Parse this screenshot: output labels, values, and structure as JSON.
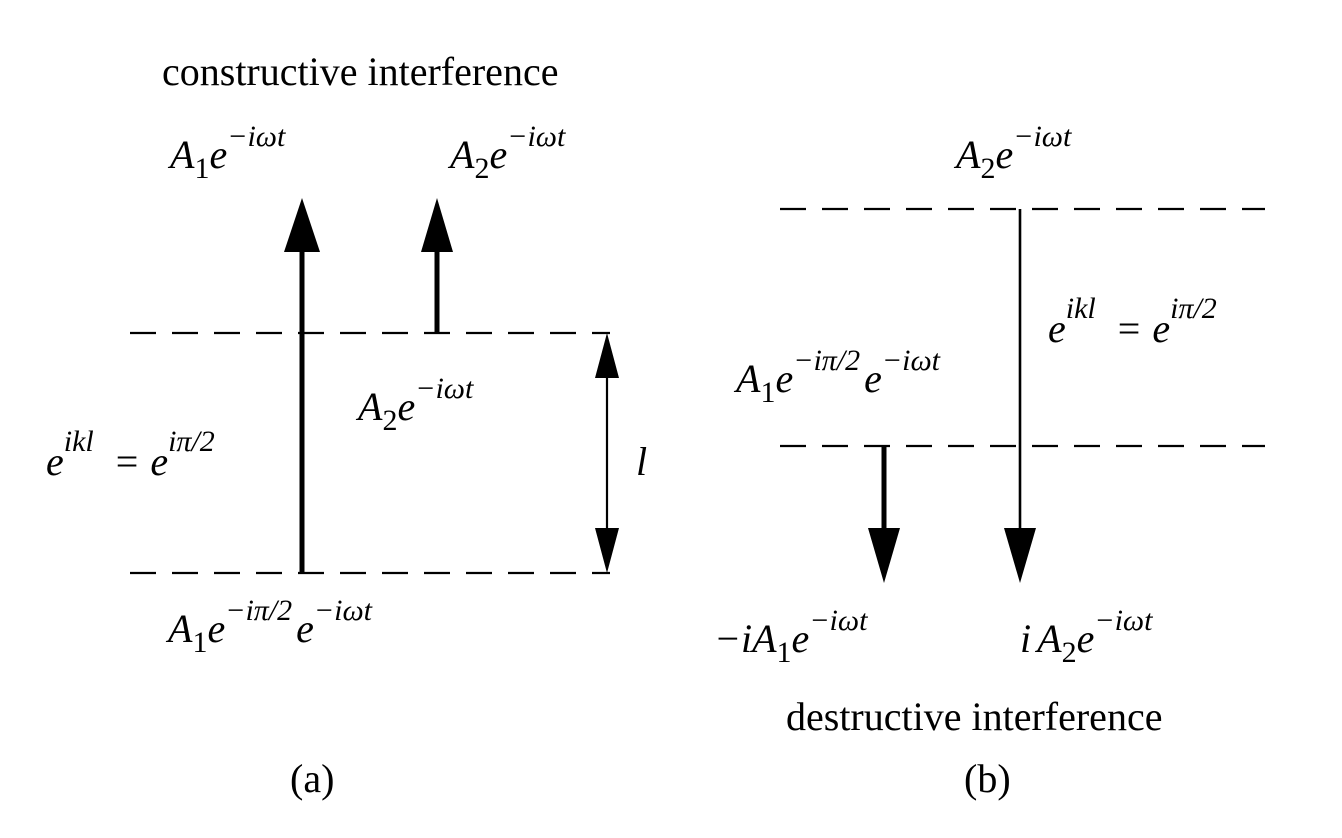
{
  "panel_a": {
    "caption": "(a)",
    "title": "constructive interference",
    "wave1_top": {
      "amp": "A",
      "amp_sub": "1",
      "base": "e",
      "exp": "−iωt"
    },
    "wave2_top": {
      "amp": "A",
      "amp_sub": "2",
      "base": "e",
      "exp": "−iωt"
    },
    "wave2_mid": {
      "amp": "A",
      "amp_sub": "2",
      "base": "e",
      "exp": "−iωt"
    },
    "phase_relation": {
      "lhs_base": "e",
      "lhs_exp": "ikl",
      "eq": "=",
      "rhs_base": "e",
      "rhs_exp": "iπ/2"
    },
    "length_label": "l",
    "wave1_bottom": {
      "amp": "A",
      "amp_sub": "1",
      "base1": "e",
      "exp1": "−iπ/2",
      "base2": "e",
      "exp2": "−iωt"
    }
  },
  "panel_b": {
    "caption": "(b)",
    "title": "destructive interference",
    "wave2_top": {
      "amp": "A",
      "amp_sub": "2",
      "base": "e",
      "exp": "−iωt"
    },
    "phase_relation": {
      "lhs_base": "e",
      "lhs_exp": "ikl",
      "eq": "=",
      "rhs_base": "e",
      "rhs_exp": "iπ/2"
    },
    "wave1_mid": {
      "amp": "A",
      "amp_sub": "1",
      "base1": "e",
      "exp1": "−iπ/2",
      "base2": "e",
      "exp2": "−iωt"
    },
    "wave1_out": {
      "prefix": "−i",
      "amp": "A",
      "amp_sub": "1",
      "base": "e",
      "exp": "−iωt"
    },
    "wave2_out": {
      "prefix": "i",
      "amp": "A",
      "amp_sub": "2",
      "base": "e",
      "exp": "−iωt"
    }
  }
}
